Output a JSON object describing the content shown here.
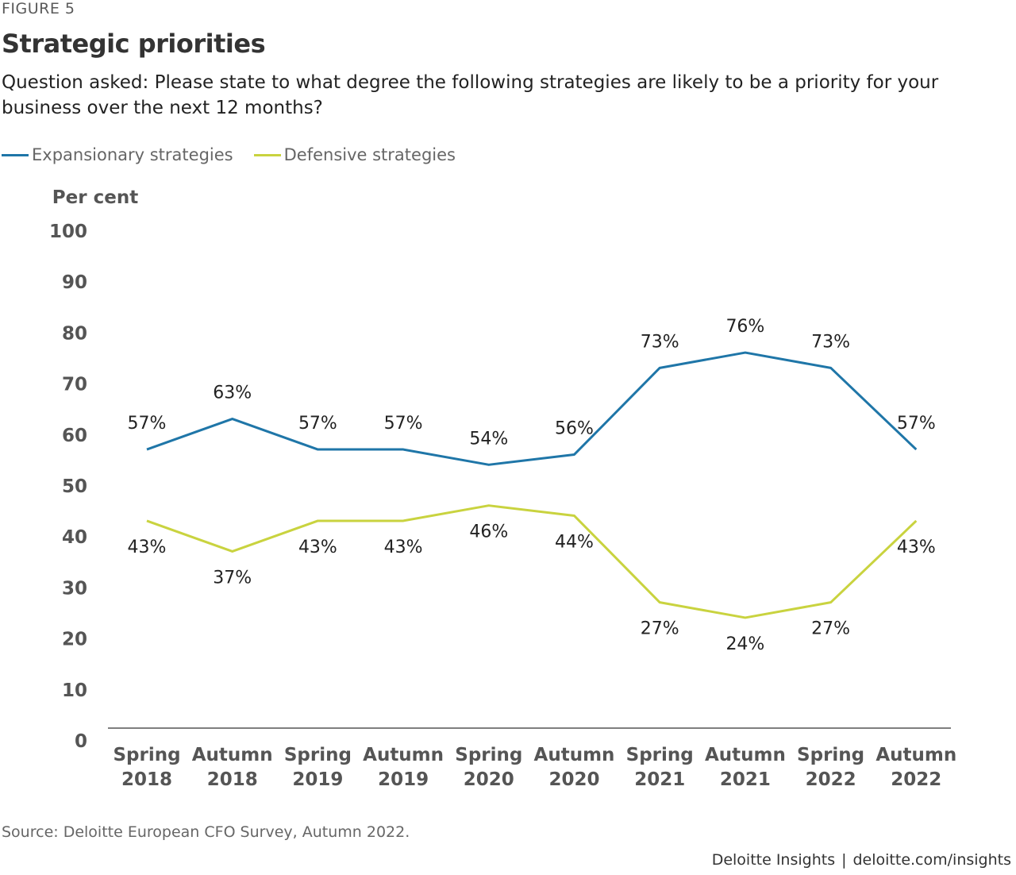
{
  "figure_label": "FIGURE 5",
  "title": "Strategic priorities",
  "subtitle": "Question asked: Please state to what degree the following strategies are likely to be a priority for your business over the next 12 months?",
  "source": "Source: Deloitte European CFO Survey, Autumn 2022.",
  "credit": {
    "brand": "Deloitte Insights",
    "separator": "|",
    "url": "deloitte.com/insights"
  },
  "chart_data": {
    "type": "line",
    "ylabel": "Per cent",
    "xlabel": "",
    "ylim": [
      0,
      100
    ],
    "yticks": [
      0,
      10,
      20,
      30,
      40,
      50,
      60,
      70,
      80,
      90,
      100
    ],
    "grid": false,
    "legend_position": "top-left",
    "categories": [
      [
        "Spring",
        "2018"
      ],
      [
        "Autumn",
        "2018"
      ],
      [
        "Spring",
        "2019"
      ],
      [
        "Autumn",
        "2019"
      ],
      [
        "Spring",
        "2020"
      ],
      [
        "Autumn",
        "2020"
      ],
      [
        "Spring",
        "2021"
      ],
      [
        "Autumn",
        "2021"
      ],
      [
        "Spring",
        "2022"
      ],
      [
        "Autumn",
        "2022"
      ]
    ],
    "series": [
      {
        "name": "Expansionary strategies",
        "color": "#1f76a8",
        "values": [
          57,
          63,
          57,
          57,
          54,
          56,
          73,
          76,
          73,
          57
        ],
        "labels": [
          "57%",
          "63%",
          "57%",
          "57%",
          "54%",
          "56%",
          "73%",
          "76%",
          "73%",
          "57%"
        ]
      },
      {
        "name": "Defensive strategies",
        "color": "#c9d33f",
        "values": [
          43,
          37,
          43,
          43,
          46,
          44,
          27,
          24,
          27,
          43
        ],
        "labels": [
          "43%",
          "37%",
          "43%",
          "43%",
          "46%",
          "44%",
          "27%",
          "24%",
          "27%",
          "43%"
        ]
      }
    ]
  }
}
